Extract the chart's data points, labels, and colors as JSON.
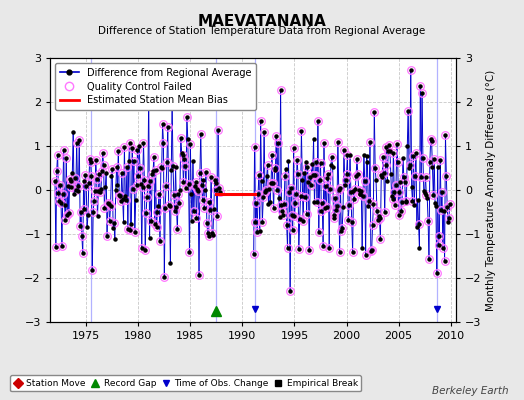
{
  "title": "MAEVATANANA",
  "subtitle": "Difference of Station Temperature Data from Regional Average",
  "ylabel": "Monthly Temperature Anomaly Difference (°C)",
  "ylim": [
    -3,
    3
  ],
  "xlim": [
    1971.5,
    2010.5
  ],
  "xticks": [
    1975,
    1980,
    1985,
    1990,
    1995,
    2000,
    2005,
    2010
  ],
  "yticks": [
    -3,
    -2,
    -1,
    0,
    1,
    2,
    3
  ],
  "background_color": "#e8e8e8",
  "plot_bg_color": "#ffffff",
  "grid_color": "#c8c8c8",
  "line_color": "#0000cc",
  "marker_color": "#000000",
  "qc_fail_color": "#ff77ff",
  "bias_color": "#ff0000",
  "record_gap_color": "#008800",
  "obs_change_color": "#0000cc",
  "watermark": "Berkeley Earth",
  "record_gap_years": [
    1987.5
  ],
  "obs_change_years": [
    1991.2,
    2008.7
  ],
  "bias_segments": [
    {
      "x_start": 1987.5,
      "x_end": 1991.2,
      "y": -0.08
    }
  ],
  "vertical_lines": [
    1975.5,
    1987.5,
    1991.2,
    2008.7
  ],
  "gap_period_start": 1987.9,
  "gap_period_end": 1991.0,
  "data_start_year": 1972,
  "data_end_year": 2009,
  "seed_data": 17,
  "seed_qc": 83
}
